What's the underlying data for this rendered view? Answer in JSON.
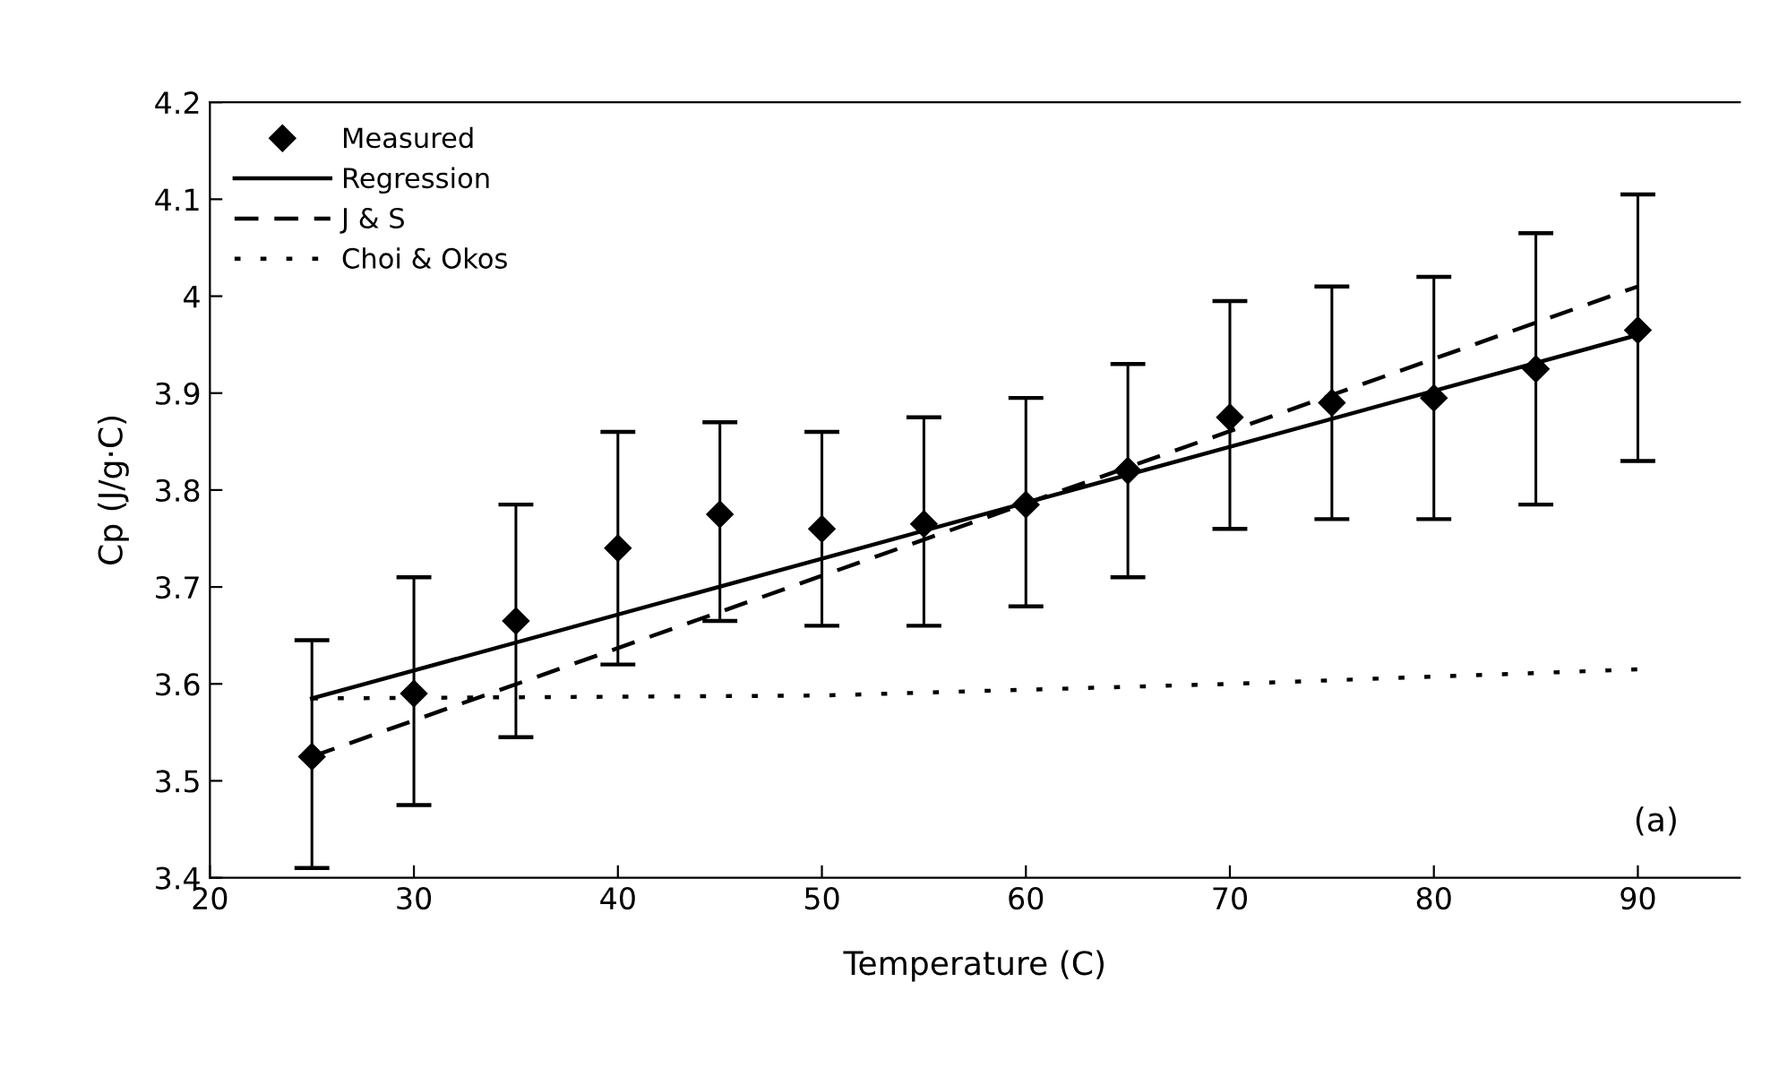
{
  "chart_data": {
    "type": "scatter",
    "xlabel": "Temperature (C)",
    "ylabel": "Cp (J/g·C)",
    "xlim": [
      20,
      95
    ],
    "ylim": [
      3.4,
      4.2
    ],
    "xticks": [
      20,
      30,
      40,
      50,
      60,
      70,
      80,
      90
    ],
    "yticks": [
      3.4,
      3.5,
      3.6,
      3.7,
      3.8,
      3.9,
      4,
      4.1,
      4.2
    ],
    "grid": false,
    "legend": "top left",
    "annotations": [
      "(a)"
    ],
    "series": [
      {
        "name": "Measured",
        "marker": "diamond",
        "color": "#000000",
        "x": [
          25,
          30,
          35,
          40,
          45,
          50,
          55,
          60,
          65,
          70,
          75,
          80,
          85,
          90
        ],
        "values": [
          3.525,
          3.59,
          3.665,
          3.74,
          3.775,
          3.76,
          3.765,
          3.785,
          3.82,
          3.875,
          3.89,
          3.895,
          3.925,
          3.965
        ],
        "errors": [
          [
            3.41,
            3.645
          ],
          [
            3.475,
            3.71
          ],
          [
            3.545,
            3.785
          ],
          [
            3.62,
            3.86
          ],
          [
            3.665,
            3.87
          ],
          [
            3.66,
            3.86
          ],
          [
            3.66,
            3.875
          ],
          [
            3.68,
            3.895
          ],
          [
            3.71,
            3.93
          ],
          [
            3.76,
            3.995
          ],
          [
            3.77,
            4.01
          ],
          [
            3.77,
            4.02
          ],
          [
            3.785,
            4.065
          ],
          [
            3.83,
            4.105
          ]
        ]
      },
      {
        "name": "Regression",
        "type": "line",
        "line_style": "solid",
        "color": "#000000",
        "x": [
          25,
          90
        ],
        "values": [
          3.585,
          3.96
        ]
      },
      {
        "name": "J & S",
        "type": "line",
        "line_style": "dashed",
        "color": "#000000",
        "x": [
          25,
          90
        ],
        "values": [
          3.525,
          4.01
        ]
      },
      {
        "name": "Choi & Okos",
        "type": "line",
        "line_style": "dotted",
        "color": "#000000",
        "x": [
          25,
          50,
          70,
          90
        ],
        "values": [
          3.585,
          3.588,
          3.6,
          3.615
        ]
      }
    ]
  }
}
